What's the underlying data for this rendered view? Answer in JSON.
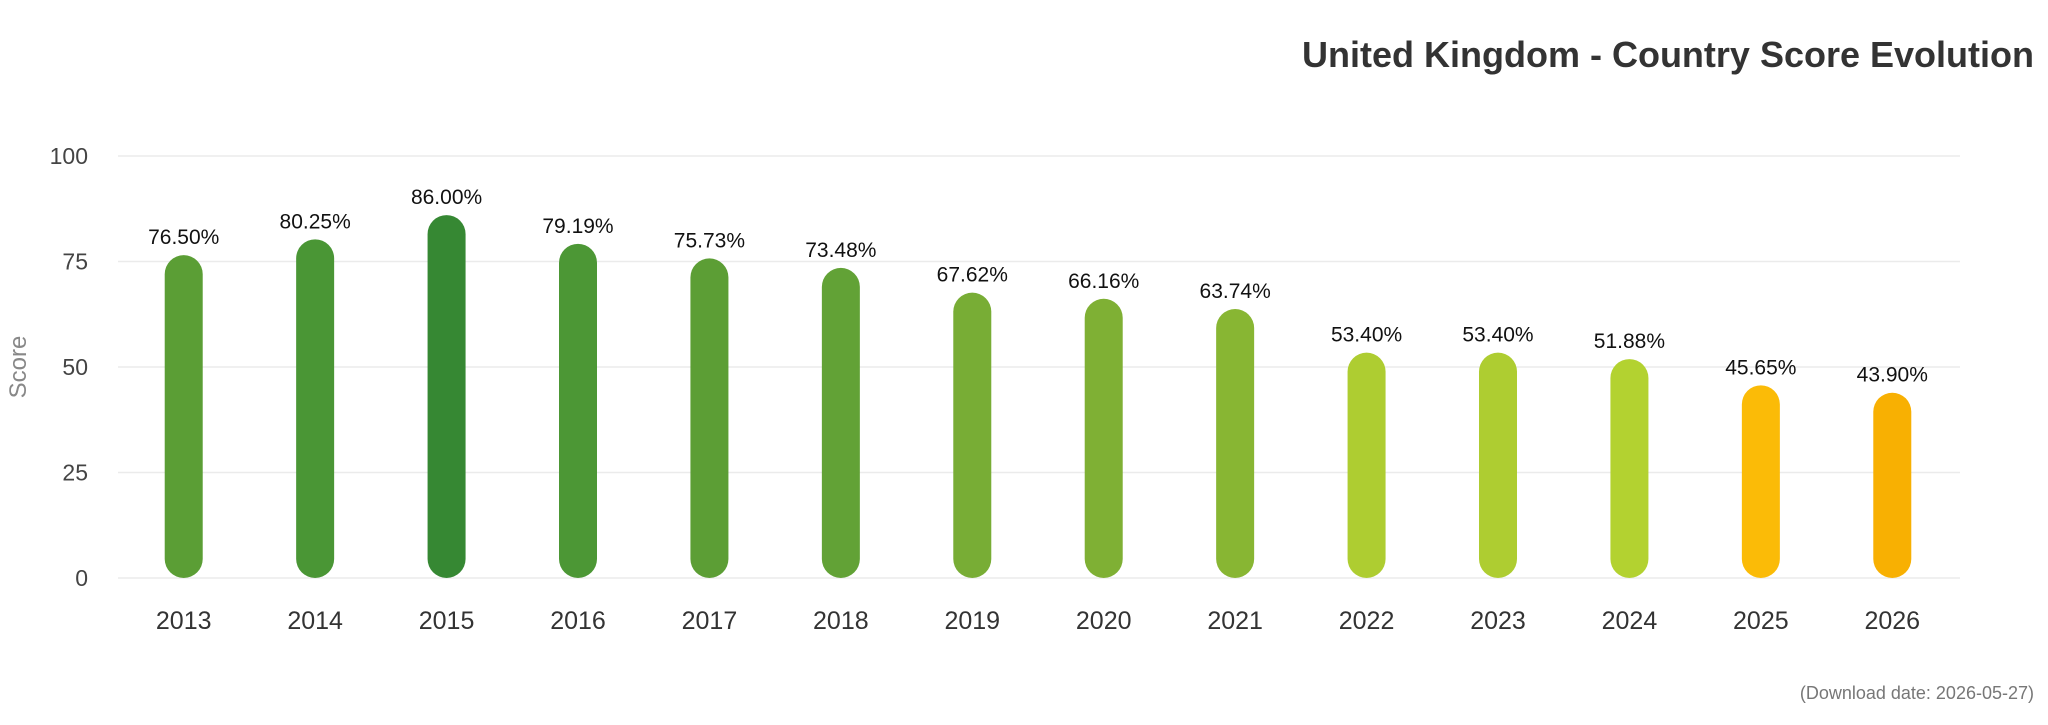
{
  "chart_data": {
    "type": "bar",
    "title": "United Kingdom - Country Score Evolution",
    "ylabel": "Score",
    "xlabel": "",
    "ylim": [
      0,
      100
    ],
    "yticks": [
      "0",
      "25",
      "50",
      "75",
      "100"
    ],
    "ytick_values": [
      0,
      25,
      50,
      75,
      100
    ],
    "grid": true,
    "categories": [
      "2013",
      "2014",
      "2015",
      "2016",
      "2017",
      "2018",
      "2019",
      "2020",
      "2021",
      "2022",
      "2023",
      "2024",
      "2025",
      "2026"
    ],
    "values": [
      76.5,
      80.25,
      86.0,
      79.19,
      75.73,
      73.48,
      67.62,
      66.16,
      63.74,
      53.4,
      53.4,
      51.88,
      45.65,
      43.9
    ],
    "labels": [
      "76.50%",
      "80.25%",
      "86.00%",
      "79.19%",
      "75.73%",
      "73.48%",
      "67.62%",
      "66.16%",
      "63.74%",
      "53.40%",
      "53.40%",
      "51.88%",
      "45.65%",
      "43.90%"
    ],
    "colors": [
      "#5b9e35",
      "#4a9635",
      "#368833",
      "#4c9735",
      "#5c9e35",
      "#62a236",
      "#78ad35",
      "#7fb034",
      "#88b633",
      "#aecd31",
      "#aecd31",
      "#b3d230",
      "#fbbb07",
      "#f8b002"
    ]
  },
  "footnote": "(Download date: 2026-05-27)"
}
